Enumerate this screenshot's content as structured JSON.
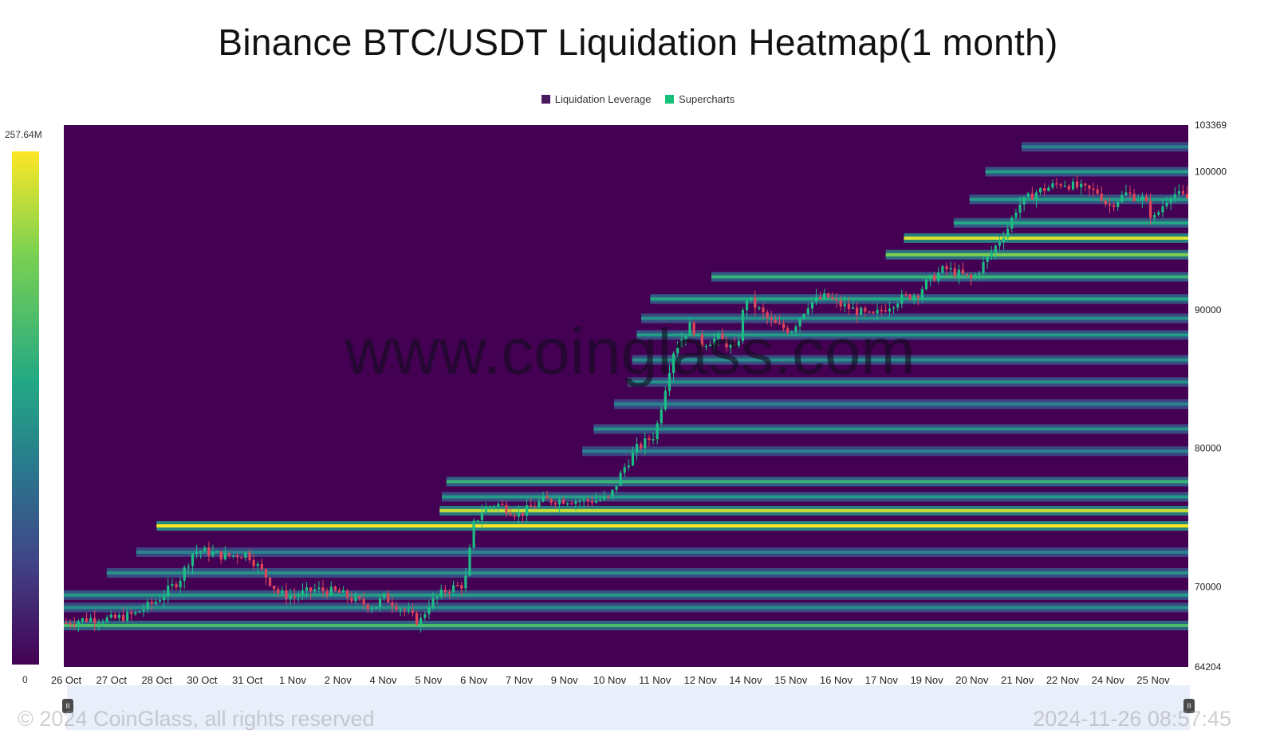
{
  "title": "Binance BTC/USDT Liquidation Heatmap(1 month)",
  "watermark": "www.coinglass.com",
  "legend": [
    {
      "label": "Liquidation Leverage",
      "color": "#4b1a5e"
    },
    {
      "label": "Supercharts",
      "color": "#14c07a"
    }
  ],
  "colorbar": {
    "max_label": "257.64M",
    "min_label": "0"
  },
  "footer": {
    "copyright": "© 2024 CoinGlass, all rights reserved",
    "timestamp": "2024-11-26 08:57:45"
  },
  "navigator": {
    "handle_glyph": "II"
  },
  "chart_data": {
    "type": "heatmap",
    "title": "Binance BTC/USDT Liquidation Heatmap(1 month)",
    "colorscale": "viridis",
    "colorbar_range": [
      0,
      257640000
    ],
    "ylim": [
      64204,
      103369
    ],
    "y_ticks": [
      103369,
      100000,
      90000,
      80000,
      70000,
      64204
    ],
    "x_tick_labels": [
      "26 Oct",
      "27 Oct",
      "28 Oct",
      "30 Oct",
      "31 Oct",
      "1 Nov",
      "2 Nov",
      "4 Nov",
      "5 Nov",
      "6 Nov",
      "7 Nov",
      "9 Nov",
      "10 Nov",
      "11 Nov",
      "12 Nov",
      "14 Nov",
      "15 Nov",
      "16 Nov",
      "17 Nov",
      "19 Nov",
      "20 Nov",
      "21 Nov",
      "22 Nov",
      "24 Nov",
      "25 Nov"
    ],
    "price_series": {
      "name": "BTC/USDT price",
      "x_tick_index": [
        0,
        0.5,
        1,
        1.5,
        2,
        2.5,
        2.8,
        3,
        3.5,
        4,
        4.4,
        4.7,
        5,
        5.5,
        6,
        6.4,
        6.8,
        7,
        7.5,
        7.8,
        8,
        8.4,
        8.8,
        9,
        9.2,
        9.5,
        10,
        10.5,
        11,
        11.5,
        12,
        12.3,
        12.6,
        13,
        13.2,
        13.4,
        13.6,
        13.8,
        14,
        14.4,
        14.8,
        15,
        15.3,
        15.6,
        16,
        16.4,
        16.8,
        17,
        17.4,
        17.8,
        18,
        18.4,
        18.8,
        19,
        19.4,
        19.8,
        20,
        20.4,
        20.8,
        21,
        21.4,
        21.8,
        22,
        22.4,
        22.8,
        23,
        23.4,
        23.8,
        24,
        24.4,
        24.8,
        25,
        25.4
      ],
      "price": [
        67400,
        67700,
        67650,
        68000,
        69000,
        70500,
        72500,
        72600,
        72200,
        72400,
        70800,
        69500,
        69300,
        69800,
        69600,
        69000,
        68500,
        69300,
        68200,
        67400,
        68700,
        69800,
        70200,
        74500,
        75600,
        76000,
        75200,
        76200,
        76300,
        76200,
        76400,
        78500,
        80000,
        81000,
        84000,
        87000,
        88000,
        89000,
        87500,
        88000,
        87000,
        91000,
        90000,
        89000,
        88500,
        90500,
        91000,
        90500,
        90000,
        89500,
        90000,
        90800,
        91200,
        92000,
        93000,
        92500,
        92200,
        94000,
        96000,
        97500,
        98500,
        99000,
        99200,
        98800,
        98500,
        97500,
        98400,
        98000,
        96500,
        98500,
        98000,
        95000,
        93000
      ]
    },
    "liquidation_bands": [
      {
        "price": 67200,
        "intensity": 0.7
      },
      {
        "price": 68500,
        "intensity": 0.5
      },
      {
        "price": 69400,
        "intensity": 0.55
      },
      {
        "price": 71000,
        "intensity": 0.5
      },
      {
        "price": 72500,
        "intensity": 0.45
      },
      {
        "price": 74400,
        "intensity": 1.0
      },
      {
        "price": 75500,
        "intensity": 0.92
      },
      {
        "price": 76500,
        "intensity": 0.55
      },
      {
        "price": 77600,
        "intensity": 0.65
      },
      {
        "price": 79800,
        "intensity": 0.45
      },
      {
        "price": 81400,
        "intensity": 0.5
      },
      {
        "price": 83200,
        "intensity": 0.45
      },
      {
        "price": 84800,
        "intensity": 0.5
      },
      {
        "price": 86400,
        "intensity": 0.5
      },
      {
        "price": 88200,
        "intensity": 0.55
      },
      {
        "price": 89400,
        "intensity": 0.5
      },
      {
        "price": 90800,
        "intensity": 0.6
      },
      {
        "price": 92400,
        "intensity": 0.65
      },
      {
        "price": 94000,
        "intensity": 0.8
      },
      {
        "price": 95200,
        "intensity": 0.95
      },
      {
        "price": 96300,
        "intensity": 0.6
      },
      {
        "price": 98000,
        "intensity": 0.55
      },
      {
        "price": 100000,
        "intensity": 0.55
      },
      {
        "price": 101800,
        "intensity": 0.45
      }
    ],
    "grid": false,
    "legend_position": "top-center"
  }
}
